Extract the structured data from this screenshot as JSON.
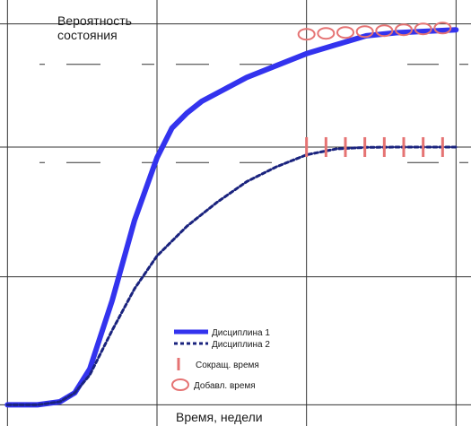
{
  "chart_data": {
    "type": "line",
    "ylabel_lines": [
      "Вероятность",
      "состояния"
    ],
    "xlabel": "Время, недели",
    "grid": true,
    "legend_position": "bottom-right",
    "series": [
      {
        "name": "Дисциплина 1",
        "style": "solid",
        "color": "#3333ee",
        "x": [
          0.0,
          0.2,
          0.35,
          0.45,
          0.55,
          0.7,
          0.85,
          1.0,
          1.1,
          1.2,
          1.3,
          1.45,
          1.6,
          1.8,
          2.0,
          2.2,
          2.4,
          2.6,
          2.8,
          3.0
        ],
        "y": [
          0.0,
          0.0,
          0.01,
          0.04,
          0.12,
          0.35,
          0.62,
          0.83,
          0.93,
          0.98,
          1.02,
          1.06,
          1.1,
          1.14,
          1.18,
          1.21,
          1.24,
          1.25,
          1.255,
          1.26
        ]
      },
      {
        "name": "Дисциплина 2",
        "style": "dotted",
        "color": "#1a237e",
        "x": [
          0.0,
          0.2,
          0.35,
          0.45,
          0.55,
          0.7,
          0.85,
          1.0,
          1.2,
          1.4,
          1.6,
          1.8,
          2.0,
          2.2,
          2.4,
          2.6,
          2.8,
          3.0
        ],
        "y": [
          0.0,
          0.0,
          0.01,
          0.04,
          0.1,
          0.25,
          0.39,
          0.5,
          0.6,
          0.68,
          0.75,
          0.8,
          0.84,
          0.86,
          0.865,
          0.866,
          0.866,
          0.866
        ]
      }
    ],
    "markers": [
      {
        "name": "Сокращ. время",
        "symbol": "bar",
        "color": "#e57373",
        "x": [
          2.0,
          2.13,
          2.26,
          2.39,
          2.52,
          2.65,
          2.78,
          2.91
        ],
        "y": [
          0.866,
          0.866,
          0.866,
          0.866,
          0.866,
          0.866,
          0.866,
          0.866
        ]
      },
      {
        "name": "Добавл. время",
        "symbol": "circle",
        "color": "#e57373",
        "x": [
          2.0,
          2.13,
          2.26,
          2.39,
          2.52,
          2.65,
          2.78,
          2.91
        ],
        "y": [
          1.245,
          1.248,
          1.251,
          1.254,
          1.257,
          1.26,
          1.263,
          1.266
        ]
      }
    ],
    "xlim": [
      -0.05,
      3.1
    ],
    "ylim": [
      -0.02,
      1.33
    ],
    "x_gridlines": [
      0,
      1,
      2,
      3
    ],
    "y_gridlines": [
      0,
      0.43,
      0.866,
      1.28
    ]
  }
}
